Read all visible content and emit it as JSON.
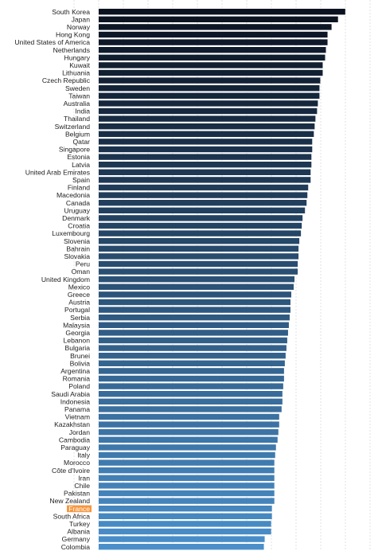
{
  "chart_data": {
    "type": "bar",
    "orientation": "horizontal",
    "title": "",
    "xlabel": "",
    "ylabel": "",
    "grid": true,
    "categories": [
      "South Korea",
      "Japan",
      "Norway",
      "Hong Kong",
      "United States of America",
      "Netherlands",
      "Hungary",
      "Kuwait",
      "Lithuania",
      "Czech Republic",
      "Sweden",
      "Taiwan",
      "Australia",
      "India",
      "Thailand",
      "Switzerland",
      "Belgium",
      "Qatar",
      "Singapore",
      "Estonia",
      "Latvia",
      "United Arab Emirates",
      "Spain",
      "Finland",
      "Macedonia",
      "Canada",
      "Uruguay",
      "Denmark",
      "Croatia",
      "Luxembourg",
      "Slovenia",
      "Bahrain",
      "Slovakia",
      "Peru",
      "Oman",
      "United Kingdom",
      "Mexico",
      "Greece",
      "Austria",
      "Portugal",
      "Serbia",
      "Malaysia",
      "Georgia",
      "Lebanon",
      "Bulgaria",
      "Brunei",
      "Bolivia",
      "Argentina",
      "Romania",
      "Poland",
      "Saudi Arabia",
      "Indonesia",
      "Panama",
      "Vietnam",
      "Kazakhstan",
      "Jordan",
      "Cambodia",
      "Paraguay",
      "Italy",
      "Morocco",
      "Côte d'Ivoire",
      "Iran",
      "Chile",
      "Pakistan",
      "New Zealand",
      "France",
      "South Africa",
      "Turkey",
      "Albania",
      "Germany",
      "Colombia"
    ],
    "values": [
      306,
      297,
      289,
      284,
      284,
      282,
      281,
      278,
      278,
      275,
      274,
      274,
      272,
      271,
      269,
      268,
      267,
      265,
      265,
      264,
      264,
      263,
      263,
      260,
      259,
      258,
      256,
      253,
      252,
      251,
      249,
      248,
      248,
      247,
      247,
      243,
      242,
      239,
      238,
      238,
      237,
      236,
      235,
      234,
      233,
      232,
      231,
      230,
      230,
      229,
      228,
      228,
      227,
      224,
      224,
      223,
      222,
      220,
      219,
      218,
      218,
      218,
      218,
      218,
      218,
      215,
      215,
      214,
      214,
      206,
      205
    ],
    "xlim": [
      0,
      320
    ],
    "highlight": "France",
    "colors": {
      "bar_dark": "#0b1220",
      "bar_light": "#4a8fca",
      "highlight": "#f7963e",
      "grid": "#e2e2e2"
    }
  }
}
